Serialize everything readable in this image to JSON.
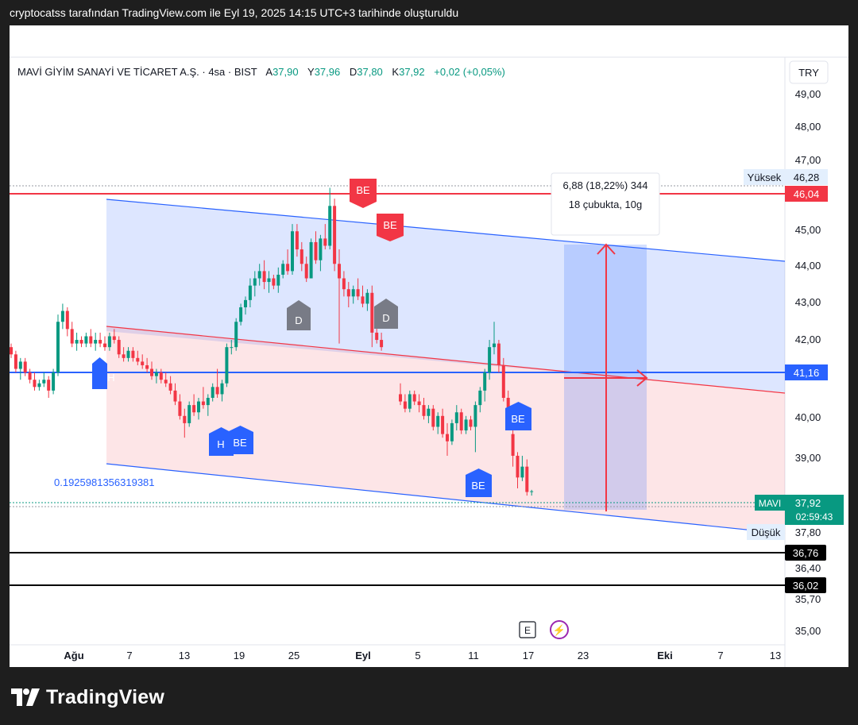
{
  "caption": "cryptocatss tarafından TradingView.com ile Eyl 19, 2025 14:15 UTC+3 tarihinde oluşturuldu",
  "header": {
    "name": "MAVİ GİYİM SANAYİ VE TİCARET A.Ş. · 4sa · BIST",
    "o_label": "A",
    "o_value": "37,90",
    "h_label": "Y",
    "h_value": "37,96",
    "l_label": "D",
    "l_value": "37,80",
    "c_label": "K",
    "c_value": "37,92",
    "change": "+0,02 (+0,05%)"
  },
  "currency": "TRY",
  "brand": "TradingView",
  "colors": {
    "up": "#089981",
    "down": "#f23645",
    "blue": "#2962ff",
    "red_line": "#f23645"
  },
  "chart_data": {
    "type": "candlestick",
    "price_axis": {
      "ticks": [
        "49,00",
        "48,00",
        "47,00",
        "45,00",
        "44,00",
        "43,00",
        "42,00",
        "40,00",
        "39,00",
        "36,40",
        "35,70",
        "35,00"
      ]
    },
    "time_axis": {
      "ticks": [
        "Ağu",
        "7",
        "13",
        "19",
        "25",
        "Eyl",
        "5",
        "11",
        "17",
        "23",
        "Eki",
        "7",
        "13"
      ]
    },
    "price_labels": [
      {
        "name": "Yüksek",
        "value": "46,28"
      },
      {
        "name": "",
        "value": "46,04"
      },
      {
        "name": "",
        "value": "41,16"
      },
      {
        "name": "MAVI",
        "value": "37,92",
        "sub": "02:59:43"
      },
      {
        "name": "Düşük",
        "value": "37,80"
      },
      {
        "name": "",
        "value": "36,76"
      },
      {
        "name": "",
        "value": "36,02"
      }
    ],
    "horizontal_lines": [
      46.04,
      41.16,
      36.76,
      36.02
    ],
    "measure": {
      "line1": "6,88 (18,22%) 344",
      "line2": "18 çubukta, 10g"
    },
    "channel_label": "0.1925981356319381",
    "signals": [
      "H",
      "H",
      "BE",
      "BE",
      "BE",
      "BE",
      "D",
      "D",
      "BE",
      "BE"
    ],
    "events": [
      "E",
      "⚡"
    ],
    "candles": [
      [
        41.9,
        42.0,
        41.6,
        41.7
      ],
      [
        41.7,
        41.8,
        41.2,
        41.3
      ],
      [
        41.3,
        41.6,
        41.0,
        41.5
      ],
      [
        41.5,
        41.6,
        41.1,
        41.2
      ],
      [
        41.2,
        41.3,
        40.9,
        41.0
      ],
      [
        41.0,
        41.2,
        40.7,
        40.8
      ],
      [
        40.8,
        41.0,
        40.7,
        40.9
      ],
      [
        40.9,
        41.2,
        40.8,
        41.0
      ],
      [
        41.0,
        41.1,
        40.5,
        40.7
      ],
      [
        40.7,
        41.3,
        40.6,
        41.2
      ],
      [
        41.2,
        42.8,
        41.1,
        42.6
      ],
      [
        42.6,
        43.1,
        42.4,
        42.9
      ],
      [
        42.9,
        43.0,
        42.2,
        42.4
      ],
      [
        42.4,
        42.6,
        41.9,
        42.0
      ],
      [
        42.0,
        42.3,
        41.8,
        42.1
      ],
      [
        42.1,
        42.2,
        41.9,
        42.0
      ],
      [
        42.0,
        42.3,
        41.9,
        42.2
      ],
      [
        42.2,
        42.4,
        41.9,
        42.0
      ],
      [
        42.0,
        42.3,
        41.8,
        42.1
      ],
      [
        42.1,
        42.3,
        41.9,
        42.0
      ],
      [
        42.0,
        42.2,
        41.8,
        41.9
      ],
      [
        41.9,
        42.3,
        41.8,
        42.2
      ],
      [
        42.2,
        42.4,
        42.0,
        42.1
      ],
      [
        42.1,
        42.2,
        41.6,
        41.7
      ],
      [
        41.7,
        41.9,
        41.5,
        41.6
      ],
      [
        41.6,
        41.9,
        41.5,
        41.8
      ],
      [
        41.8,
        41.9,
        41.5,
        41.6
      ],
      [
        41.6,
        41.8,
        41.4,
        41.5
      ],
      [
        41.5,
        41.7,
        41.3,
        41.4
      ],
      [
        41.4,
        41.6,
        41.2,
        41.3
      ],
      [
        41.3,
        41.5,
        41.0,
        41.1
      ],
      [
        41.1,
        41.3,
        40.9,
        41.2
      ],
      [
        41.2,
        41.3,
        40.9,
        41.0
      ],
      [
        41.0,
        41.2,
        40.8,
        40.9
      ],
      [
        40.9,
        41.1,
        40.6,
        40.7
      ],
      [
        40.7,
        40.9,
        40.3,
        40.4
      ],
      [
        40.4,
        40.6,
        39.9,
        40.0
      ],
      [
        40.0,
        40.2,
        39.4,
        39.8
      ],
      [
        39.8,
        40.4,
        39.7,
        40.3
      ],
      [
        40.3,
        40.6,
        40.0,
        40.1
      ],
      [
        40.1,
        40.5,
        39.9,
        40.4
      ],
      [
        40.4,
        40.8,
        40.2,
        40.3
      ],
      [
        40.3,
        40.6,
        40.0,
        40.5
      ],
      [
        40.5,
        40.9,
        40.4,
        40.8
      ],
      [
        40.8,
        41.3,
        40.5,
        40.6
      ],
      [
        40.6,
        41.0,
        40.4,
        40.9
      ],
      [
        40.9,
        42.0,
        40.8,
        41.9
      ],
      [
        41.9,
        42.1,
        41.7,
        41.9
      ],
      [
        41.9,
        42.7,
        41.8,
        42.6
      ],
      [
        42.6,
        43.1,
        42.5,
        43.0
      ],
      [
        43.0,
        43.3,
        42.8,
        43.2
      ],
      [
        43.2,
        43.8,
        43.0,
        43.6
      ],
      [
        43.6,
        44.0,
        43.3,
        43.8
      ],
      [
        43.8,
        44.2,
        43.6,
        44.0
      ],
      [
        44.0,
        44.3,
        43.5,
        43.7
      ],
      [
        43.7,
        44.0,
        43.4,
        43.8
      ],
      [
        43.8,
        43.9,
        43.5,
        43.6
      ],
      [
        43.6,
        44.1,
        43.4,
        43.9
      ],
      [
        43.9,
        44.3,
        43.8,
        44.2
      ],
      [
        44.2,
        44.6,
        43.9,
        44.0
      ],
      [
        44.0,
        45.3,
        43.9,
        45.1
      ],
      [
        45.1,
        45.3,
        44.4,
        44.6
      ],
      [
        44.6,
        44.8,
        44.0,
        44.2
      ],
      [
        44.2,
        44.4,
        43.7,
        43.8
      ],
      [
        43.8,
        44.9,
        43.8,
        44.8
      ],
      [
        44.8,
        45.1,
        44.2,
        44.3
      ],
      [
        44.3,
        45.0,
        44.0,
        44.9
      ],
      [
        44.9,
        45.3,
        44.6,
        44.7
      ],
      [
        44.7,
        46.3,
        44.6,
        45.8
      ],
      [
        45.8,
        46.0,
        44.0,
        44.2
      ],
      [
        44.2,
        44.6,
        42.0,
        43.8
      ],
      [
        43.8,
        44.0,
        43.3,
        43.5
      ],
      [
        43.5,
        43.7,
        43.0,
        43.3
      ],
      [
        43.3,
        43.6,
        43.1,
        43.5
      ],
      [
        43.5,
        43.8,
        43.2,
        43.3
      ],
      [
        43.3,
        43.6,
        43.0,
        43.1
      ],
      [
        43.1,
        43.5,
        42.9,
        43.4
      ],
      [
        43.4,
        43.6,
        41.9,
        42.3
      ],
      [
        42.3,
        42.5,
        42.0,
        42.1
      ],
      [
        42.1,
        42.3,
        41.8,
        41.9
      ],
      [
        40.6,
        40.9,
        40.3,
        40.4
      ],
      [
        40.4,
        40.6,
        40.1,
        40.2
      ],
      [
        40.2,
        40.7,
        40.1,
        40.6
      ],
      [
        40.6,
        40.7,
        40.3,
        40.4
      ],
      [
        40.4,
        40.6,
        40.1,
        40.3
      ],
      [
        40.3,
        40.5,
        39.9,
        40.0
      ],
      [
        40.0,
        40.3,
        39.8,
        40.2
      ],
      [
        40.2,
        40.3,
        39.6,
        39.7
      ],
      [
        39.7,
        40.1,
        39.5,
        40.0
      ],
      [
        40.0,
        40.2,
        39.4,
        39.5
      ],
      [
        39.5,
        39.8,
        38.9,
        39.3
      ],
      [
        39.3,
        39.9,
        39.2,
        39.8
      ],
      [
        39.8,
        40.3,
        39.6,
        40.1
      ],
      [
        40.1,
        40.2,
        39.5,
        39.6
      ],
      [
        39.6,
        40.0,
        39.5,
        39.9
      ],
      [
        39.9,
        40.0,
        39.6,
        39.7
      ],
      [
        39.7,
        40.4,
        39.0,
        40.3
      ],
      [
        40.3,
        40.8,
        40.1,
        40.7
      ],
      [
        40.7,
        41.3,
        40.4,
        41.2
      ],
      [
        41.2,
        42.1,
        41.0,
        41.9
      ],
      [
        41.9,
        42.6,
        41.7,
        42.0
      ],
      [
        42.0,
        42.1,
        41.2,
        41.4
      ],
      [
        41.4,
        41.6,
        40.4,
        40.5
      ],
      [
        40.5,
        40.7,
        40.0,
        40.1
      ],
      [
        39.5,
        39.6,
        38.6,
        38.9
      ],
      [
        38.9,
        39.0,
        38.0,
        38.3
      ],
      [
        38.3,
        38.9,
        38.2,
        38.6
      ],
      [
        38.6,
        38.8,
        37.8,
        37.9
      ],
      [
        37.9,
        37.96,
        37.8,
        37.92
      ]
    ]
  }
}
